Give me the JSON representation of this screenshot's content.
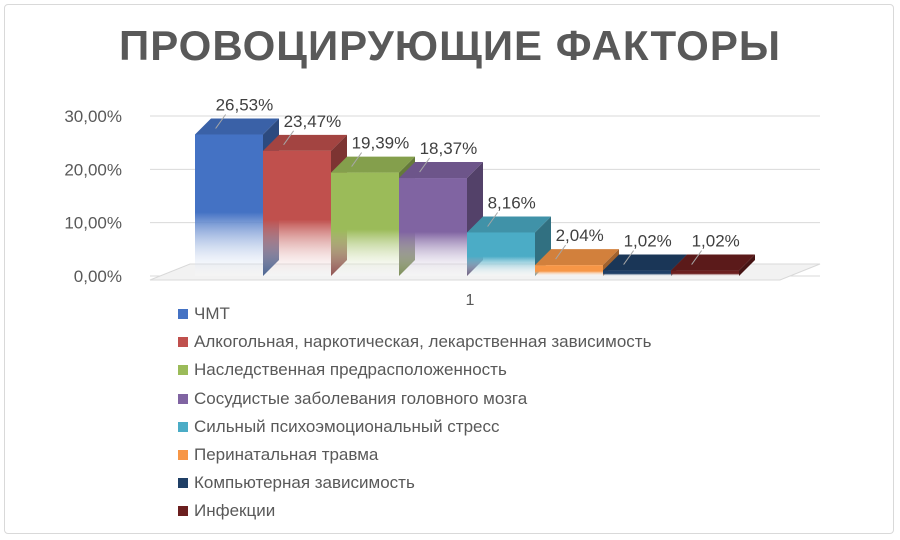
{
  "chart_data": {
    "type": "bar",
    "title": "ПРОВОЦИРУЮЩИЕ ФАКТОРЫ",
    "categories": [
      "1"
    ],
    "ylim": [
      0,
      30
    ],
    "yticks": [
      "0,00%",
      "10,00%",
      "20,00%",
      "30,00%"
    ],
    "grid": true,
    "legend_position": "bottom-left",
    "series": [
      {
        "name": "ЧМТ",
        "value": 26.53,
        "label": "26,53%",
        "color": "#4472C4"
      },
      {
        "name": "Алкогольная, наркотическая, лекарственная зависимость",
        "value": 23.47,
        "label": "23,47%",
        "color": "#C0504D"
      },
      {
        "name": "Наследственная предрасположенность",
        "value": 19.39,
        "label": "19,39%",
        "color": "#9BBB59"
      },
      {
        "name": "Сосудистые заболевания головного мозга",
        "value": 18.37,
        "label": "18,37%",
        "color": "#8064A2"
      },
      {
        "name": "Сильный психоэмоциональный стресс",
        "value": 8.16,
        "label": "8,16%",
        "color": "#4BACC6"
      },
      {
        "name": "Перинатальная травма",
        "value": 2.04,
        "label": "2,04%",
        "color": "#F79646"
      },
      {
        "name": "Компьютерная зависимость",
        "value": 1.02,
        "label": "1,02%",
        "color": "#1F3F66"
      },
      {
        "name": "Инфекции",
        "value": 1.02,
        "label": "1,02%",
        "color": "#6B1F1F"
      }
    ]
  }
}
